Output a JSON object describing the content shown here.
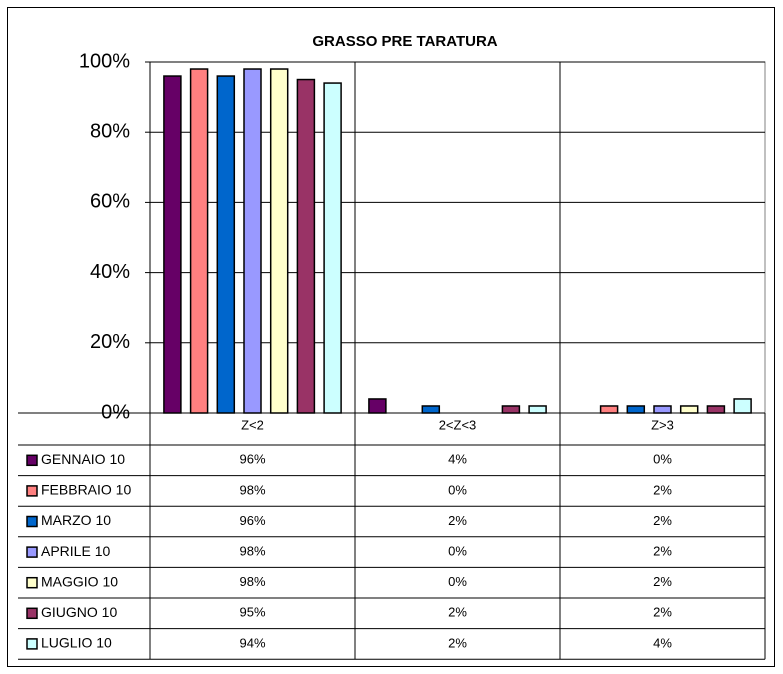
{
  "chart_data": {
    "type": "bar",
    "title": "GRASSO  PRE TARATURA",
    "categories": [
      "Z<2",
      "2<Z<3",
      "Z>3"
    ],
    "series": [
      {
        "name": "GENNAIO 10",
        "color": "#660066",
        "values": [
          96,
          4,
          0
        ],
        "value_labels": [
          "96%",
          "4%",
          "0%"
        ]
      },
      {
        "name": "FEBBRAIO 10",
        "color": "#ff8080",
        "values": [
          98,
          0,
          2
        ],
        "value_labels": [
          "98%",
          "0%",
          "2%"
        ]
      },
      {
        "name": "MARZO 10",
        "color": "#0066cc",
        "values": [
          96,
          2,
          2
        ],
        "value_labels": [
          "96%",
          "2%",
          "2%"
        ]
      },
      {
        "name": "APRILE 10",
        "color": "#9999ff",
        "values": [
          98,
          0,
          2
        ],
        "value_labels": [
          "98%",
          "0%",
          "2%"
        ]
      },
      {
        "name": "MAGGIO 10",
        "color": "#ffffcc",
        "values": [
          98,
          0,
          2
        ],
        "value_labels": [
          "98%",
          "0%",
          "2%"
        ]
      },
      {
        "name": "GIUGNO 10",
        "color": "#993366",
        "values": [
          95,
          2,
          2
        ],
        "value_labels": [
          "95%",
          "2%",
          "2%"
        ]
      },
      {
        "name": "LUGLIO 10",
        "color": "#ccffff",
        "values": [
          94,
          2,
          4
        ],
        "value_labels": [
          "94%",
          "2%",
          "4%"
        ]
      }
    ],
    "ylim": [
      0,
      100
    ],
    "yticks": [
      {
        "value": 0,
        "label": "0%"
      },
      {
        "value": 20,
        "label": "20%"
      },
      {
        "value": 40,
        "label": "40%"
      },
      {
        "value": 60,
        "label": "60%"
      },
      {
        "value": 80,
        "label": "80%"
      },
      {
        "value": 100,
        "label": "100%"
      }
    ],
    "grid": true,
    "title_color": "#339966"
  }
}
